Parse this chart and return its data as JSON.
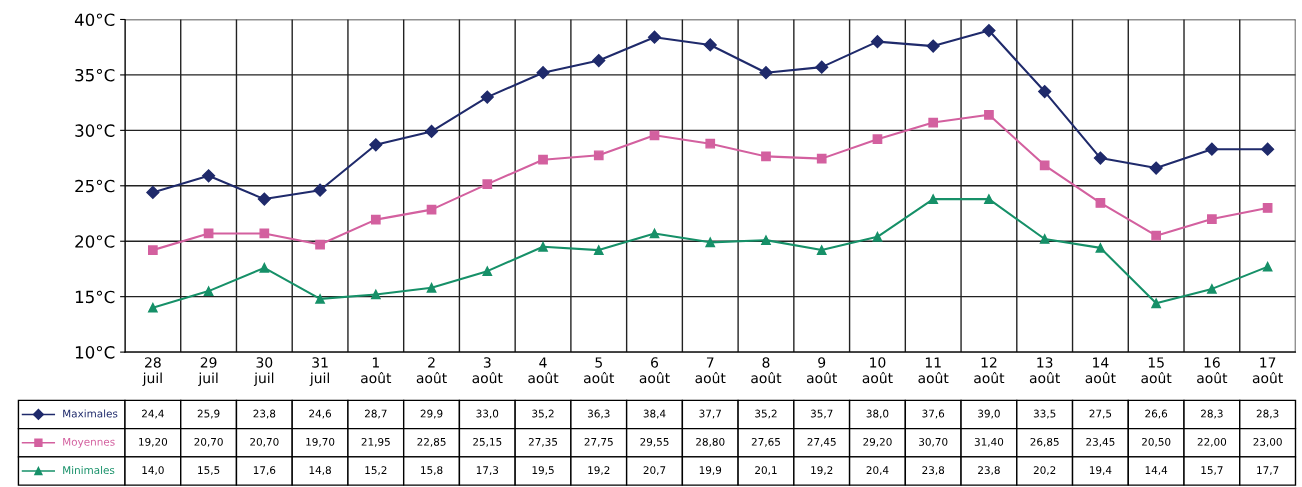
{
  "chart_data": {
    "type": "line",
    "categories": [
      "28\njuil",
      "29\njuil",
      "30\njuil",
      "31\njuil",
      "1\naoût",
      "2\naoût",
      "3\naoût",
      "4\naoût",
      "5\naoût",
      "6\naoût",
      "7\naoût",
      "8\naoût",
      "9\naoût",
      "10\naoût",
      "11\naoût",
      "12\naoût",
      "13\naoût",
      "14\naoût",
      "15\naoût",
      "16\naoût",
      "17\naoût"
    ],
    "series": [
      {
        "name": "Maximales",
        "color": "#1f2a6b",
        "marker": "diamond",
        "values": [
          24.4,
          25.9,
          23.8,
          24.6,
          28.7,
          29.9,
          33.0,
          35.2,
          36.3,
          38.4,
          37.7,
          35.2,
          35.7,
          38.0,
          37.6,
          39.0,
          33.5,
          27.5,
          26.6,
          28.3,
          28.3
        ],
        "value_labels": [
          "24,4",
          "25,9",
          "23,8",
          "24,6",
          "28,7",
          "29,9",
          "33,0",
          "35,2",
          "36,3",
          "38,4",
          "37,7",
          "35,2",
          "35,7",
          "38,0",
          "37,6",
          "39,0",
          "33,5",
          "27,5",
          "26,6",
          "28,3",
          "28,3"
        ]
      },
      {
        "name": "Moyennes",
        "color": "#d3609f",
        "marker": "square",
        "values": [
          19.2,
          20.7,
          20.7,
          19.7,
          21.95,
          22.85,
          25.15,
          27.35,
          27.75,
          29.55,
          28.8,
          27.65,
          27.45,
          29.2,
          30.7,
          31.4,
          26.85,
          23.45,
          20.5,
          22.0,
          23.0
        ],
        "value_labels": [
          "19,20",
          "20,70",
          "20,70",
          "19,70",
          "21,95",
          "22,85",
          "25,15",
          "27,35",
          "27,75",
          "29,55",
          "28,80",
          "27,65",
          "27,45",
          "29,20",
          "30,70",
          "31,40",
          "26,85",
          "23,45",
          "20,50",
          "22,00",
          "23,00"
        ]
      },
      {
        "name": "Minimales",
        "color": "#169068",
        "marker": "triangle",
        "values": [
          14.0,
          15.5,
          17.6,
          14.8,
          15.2,
          15.8,
          17.3,
          19.5,
          19.2,
          20.7,
          19.9,
          20.1,
          19.2,
          20.4,
          23.8,
          23.8,
          20.2,
          19.4,
          14.4,
          15.7,
          17.7
        ],
        "value_labels": [
          "14,0",
          "15,5",
          "17,6",
          "14,8",
          "15,2",
          "15,8",
          "17,3",
          "19,5",
          "19,2",
          "20,7",
          "19,9",
          "20,1",
          "19,2",
          "20,4",
          "23,8",
          "23,8",
          "20,2",
          "19,4",
          "14,4",
          "15,7",
          "17,7"
        ]
      }
    ],
    "ylim": [
      10,
      40
    ],
    "yticks": [
      {
        "value": 10,
        "label": "10°C"
      },
      {
        "value": 15,
        "label": "15°C"
      },
      {
        "value": 20,
        "label": "20°C"
      },
      {
        "value": 25,
        "label": "25°C"
      },
      {
        "value": 30,
        "label": "30°C"
      },
      {
        "value": 35,
        "label": "35°C"
      },
      {
        "value": 40,
        "label": "40°C"
      }
    ],
    "grid": true,
    "legend": "bottom left",
    "line_style": "solid"
  }
}
